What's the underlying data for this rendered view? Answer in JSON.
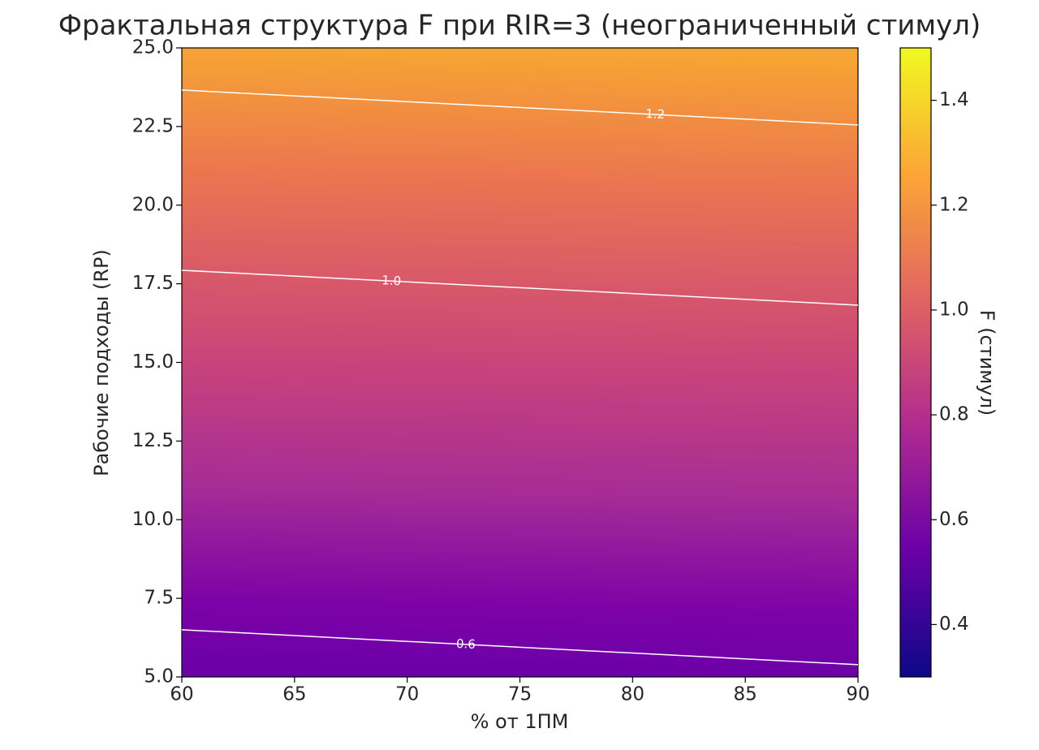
{
  "chart_data": {
    "type": "contour",
    "title": "Фрактальная структура F при RIR=3 (неограниченный стимул)",
    "x_label": "% от 1ПМ",
    "y_label": "Рабочие подходы (RP)",
    "xlim": [
      60,
      90
    ],
    "ylim": [
      5,
      25
    ],
    "xticks": [
      60,
      65,
      70,
      75,
      80,
      85,
      90
    ],
    "yticks": [
      {
        "value": 5,
        "label": "5.0"
      },
      7.5,
      {
        "value": 10,
        "label": "10.0"
      },
      12.5,
      {
        "value": 15,
        "label": "15.0"
      },
      17.5,
      {
        "value": 20,
        "label": "20.0"
      },
      22.5,
      {
        "value": 25,
        "label": "25.0"
      }
    ],
    "colorbar": {
      "label": "F (стимул)",
      "lim": [
        0.3,
        1.5
      ],
      "ticks": [
        0.4,
        0.6,
        0.8,
        {
          "value": 1,
          "label": "1.0"
        },
        1.2,
        1.4
      ]
    },
    "contours": [
      {
        "level": 0.6,
        "label": "0.6",
        "color": "#ffffff",
        "x": [
          60,
          90
        ],
        "y": [
          6.5,
          5.39
        ]
      },
      {
        "level": 1,
        "label": "1.0",
        "color": "#ffffff",
        "x": [
          60,
          90
        ],
        "y": [
          17.93,
          16.82
        ]
      },
      {
        "level": 1.2,
        "label": "1.2",
        "color": "#ffffff",
        "x": [
          60,
          90
        ],
        "y": [
          23.66,
          22.55
        ]
      }
    ]
  }
}
